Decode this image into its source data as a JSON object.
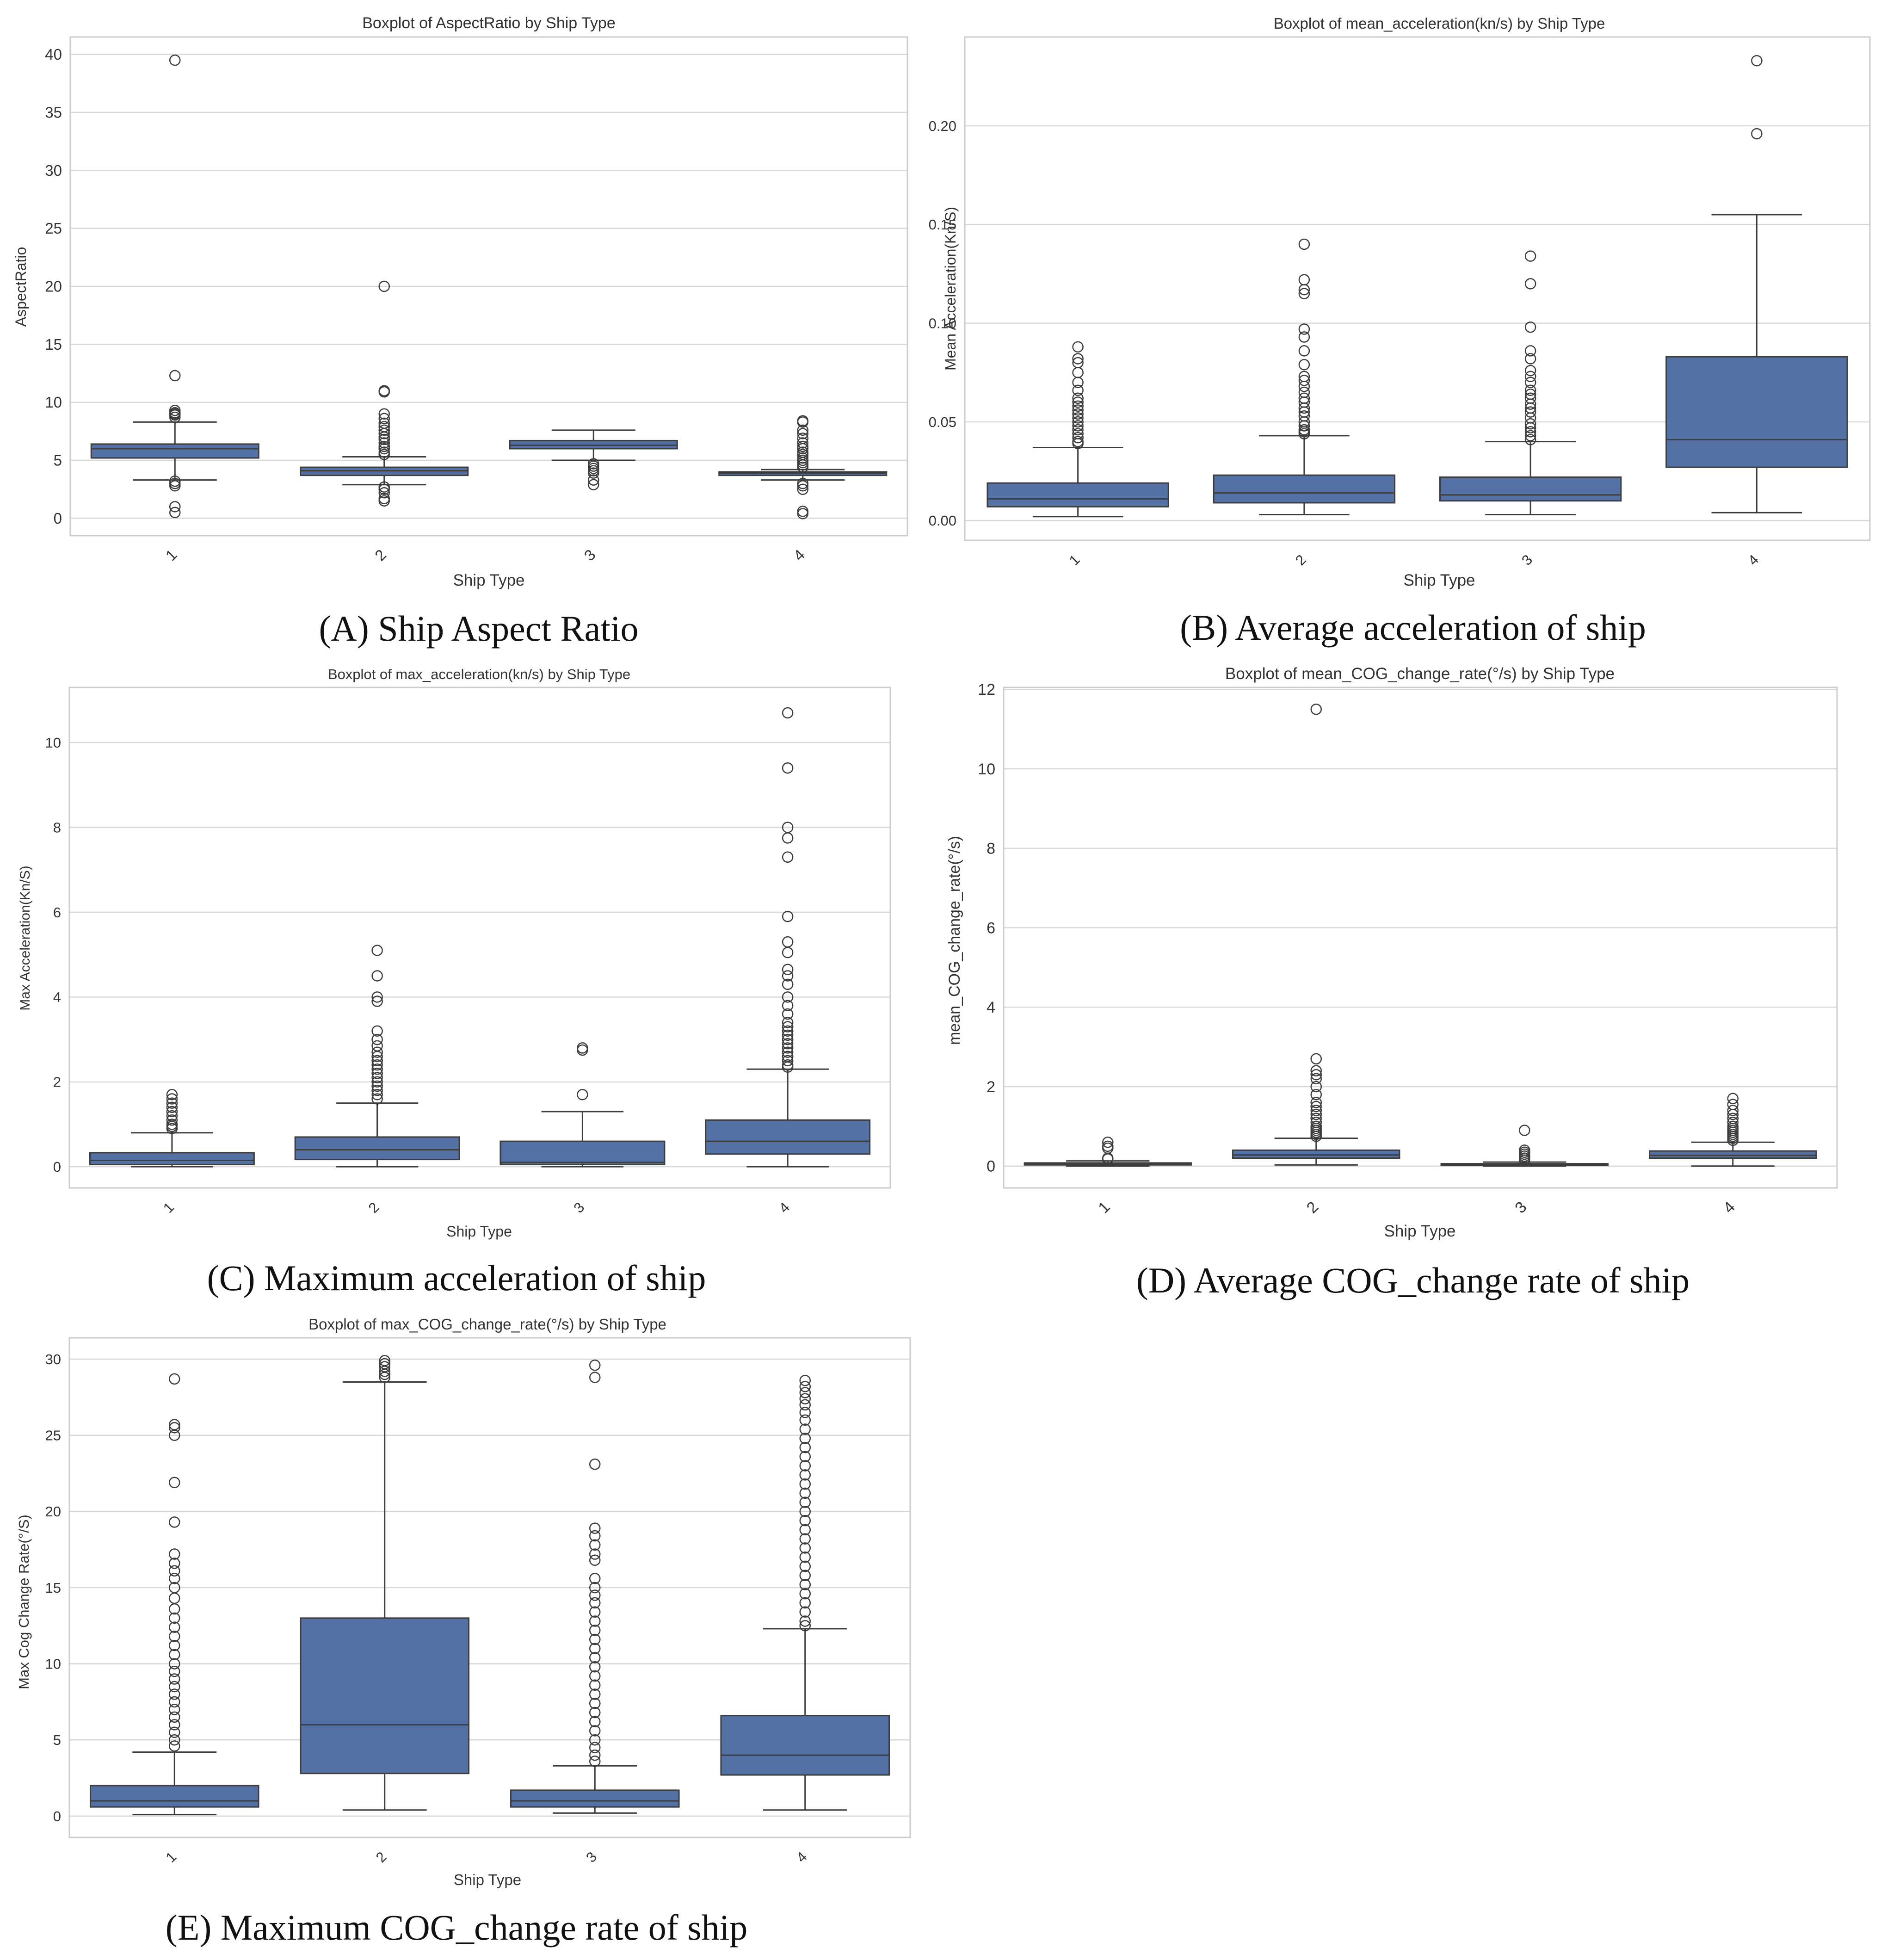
{
  "chart_data": [
    {
      "id": "A",
      "type": "boxplot",
      "title": "Boxplot of AspectRatio by Ship Type",
      "xlabel": "Ship Type",
      "ylabel": "AspectRatio",
      "caption": "(A) Ship Aspect Ratio",
      "categories": [
        "1",
        "2",
        "3",
        "4"
      ],
      "ylim": [
        -1.5,
        41.5
      ],
      "yticks": [
        0,
        5,
        10,
        15,
        20,
        25,
        30,
        35,
        40
      ],
      "ytick_labels": [
        "0",
        "5",
        "10",
        "15",
        "20",
        "25",
        "30",
        "35",
        "40"
      ],
      "boxes": [
        {
          "whislo": 3.3,
          "q1": 5.2,
          "med": 6.0,
          "q3": 6.4,
          "whishi": 8.3,
          "fliers": [
            39.5,
            12.3,
            9.3,
            9.1,
            9.0,
            8.9,
            8.7,
            3.2,
            3.0,
            2.8,
            1.0,
            0.5
          ]
        },
        {
          "whislo": 2.9,
          "q1": 3.7,
          "med": 4.1,
          "q3": 4.4,
          "whishi": 5.3,
          "fliers": [
            20.0,
            11.0,
            10.9,
            9.0,
            8.6,
            8.2,
            7.9,
            7.6,
            7.3,
            7.0,
            6.8,
            6.5,
            6.2,
            6.0,
            5.7,
            5.5,
            2.7,
            2.5,
            2.2,
            1.7,
            1.5
          ]
        },
        {
          "whislo": 5.0,
          "q1": 6.0,
          "med": 6.3,
          "q3": 6.7,
          "whishi": 7.6,
          "fliers": [
            4.7,
            4.5,
            4.3,
            4.1,
            3.9,
            3.3,
            2.9
          ]
        },
        {
          "whislo": 3.3,
          "q1": 3.7,
          "med": 3.9,
          "q3": 4.0,
          "whishi": 4.2,
          "fliers": [
            8.4,
            8.3,
            7.6,
            7.3,
            6.9,
            6.5,
            6.2,
            6.0,
            5.7,
            5.5,
            5.2,
            5.0,
            4.8,
            4.6,
            4.4,
            3.0,
            2.8,
            2.5,
            0.6,
            0.4
          ]
        }
      ]
    },
    {
      "id": "B",
      "type": "boxplot",
      "title": "Boxplot of mean_acceleration(kn/s) by Ship Type",
      "xlabel": "Ship Type",
      "ylabel": "Mean Acceleration(Kn/S)",
      "caption": "(B) Average acceleration of ship",
      "categories": [
        "1",
        "2",
        "3",
        "4"
      ],
      "ylim": [
        -0.01,
        0.245
      ],
      "yticks": [
        0,
        0.05,
        0.1,
        0.15,
        0.2
      ],
      "ytick_labels": [
        "0.00",
        "0.05",
        "0.10",
        "0.15",
        "0.20"
      ],
      "boxes": [
        {
          "whislo": 0.002,
          "q1": 0.007,
          "med": 0.011,
          "q3": 0.019,
          "whishi": 0.037,
          "fliers": [
            0.088,
            0.082,
            0.08,
            0.075,
            0.07,
            0.066,
            0.062,
            0.06,
            0.058,
            0.056,
            0.054,
            0.052,
            0.05,
            0.048,
            0.046,
            0.044,
            0.042,
            0.04,
            0.039
          ]
        },
        {
          "whislo": 0.003,
          "q1": 0.009,
          "med": 0.014,
          "q3": 0.023,
          "whishi": 0.043,
          "fliers": [
            0.14,
            0.122,
            0.117,
            0.115,
            0.097,
            0.093,
            0.086,
            0.079,
            0.073,
            0.071,
            0.068,
            0.065,
            0.062,
            0.06,
            0.057,
            0.055,
            0.053,
            0.05,
            0.048,
            0.046,
            0.045,
            0.044
          ]
        },
        {
          "whislo": 0.003,
          "q1": 0.01,
          "med": 0.013,
          "q3": 0.022,
          "whishi": 0.04,
          "fliers": [
            0.134,
            0.12,
            0.098,
            0.086,
            0.082,
            0.076,
            0.073,
            0.07,
            0.066,
            0.064,
            0.062,
            0.059,
            0.057,
            0.055,
            0.052,
            0.049,
            0.047,
            0.045,
            0.043,
            0.041
          ]
        },
        {
          "whislo": 0.004,
          "q1": 0.027,
          "med": 0.041,
          "q3": 0.083,
          "whishi": 0.155,
          "fliers": [
            0.233,
            0.196
          ]
        }
      ]
    },
    {
      "id": "C",
      "type": "boxplot",
      "title": "Boxplot of max_acceleration(kn/s) by Ship Type",
      "xlabel": "Ship Type",
      "ylabel": "Max Acceleration(Kn/S)",
      "caption": "(C) Maximum acceleration of ship",
      "categories": [
        "1",
        "2",
        "3",
        "4"
      ],
      "ylim": [
        -0.5,
        11.3
      ],
      "yticks": [
        0,
        2,
        4,
        6,
        8,
        10
      ],
      "ytick_labels": [
        "0",
        "2",
        "4",
        "6",
        "8",
        "10"
      ],
      "boxes": [
        {
          "whislo": 0.0,
          "q1": 0.05,
          "med": 0.15,
          "q3": 0.33,
          "whishi": 0.8,
          "fliers": [
            1.7,
            1.6,
            1.5,
            1.4,
            1.3,
            1.2,
            1.1,
            1.0,
            0.95,
            0.9
          ]
        },
        {
          "whislo": 0.0,
          "q1": 0.17,
          "med": 0.4,
          "q3": 0.7,
          "whishi": 1.5,
          "fliers": [
            5.1,
            4.5,
            4.0,
            3.9,
            3.2,
            3.0,
            2.85,
            2.7,
            2.6,
            2.5,
            2.4,
            2.3,
            2.2,
            2.1,
            2.0,
            1.9,
            1.8,
            1.7,
            1.6
          ]
        },
        {
          "whislo": 0.0,
          "q1": 0.05,
          "med": 0.1,
          "q3": 0.6,
          "whishi": 1.3,
          "fliers": [
            2.8,
            2.75,
            1.7
          ]
        },
        {
          "whislo": 0.0,
          "q1": 0.3,
          "med": 0.6,
          "q3": 1.1,
          "whishi": 2.3,
          "fliers": [
            10.7,
            9.4,
            8.0,
            7.75,
            7.3,
            5.9,
            5.3,
            5.05,
            4.65,
            4.5,
            4.3,
            4.0,
            3.8,
            3.6,
            3.4,
            3.3,
            3.2,
            3.1,
            3.0,
            2.9,
            2.8,
            2.7,
            2.6,
            2.5,
            2.4,
            2.35
          ]
        }
      ]
    },
    {
      "id": "D",
      "type": "boxplot",
      "title": "Boxplot of mean_COG_change_rate(°/s) by Ship Type",
      "xlabel": "Ship Type",
      "ylabel": "mean_COG_change_rate(°/s)",
      "caption": "(D) Average COG_change rate of ship",
      "categories": [
        "1",
        "2",
        "3",
        "4"
      ],
      "ylim": [
        -0.55,
        12.05
      ],
      "yticks": [
        0,
        2,
        4,
        6,
        8,
        10,
        12
      ],
      "ytick_labels": [
        "0",
        "2",
        "4",
        "6",
        "8",
        "10",
        "12"
      ],
      "boxes": [
        {
          "whislo": 0.0,
          "q1": 0.03,
          "med": 0.05,
          "q3": 0.08,
          "whishi": 0.13,
          "fliers": [
            0.6,
            0.5,
            0.45,
            0.2,
            0.18
          ]
        },
        {
          "whislo": 0.03,
          "q1": 0.2,
          "med": 0.28,
          "q3": 0.4,
          "whishi": 0.7,
          "fliers": [
            11.5,
            2.7,
            2.4,
            2.3,
            2.2,
            2.0,
            1.8,
            1.6,
            1.5,
            1.4,
            1.3,
            1.2,
            1.1,
            1.0,
            0.95,
            0.9,
            0.85,
            0.8,
            0.75
          ]
        },
        {
          "whislo": 0.0,
          "q1": 0.02,
          "med": 0.04,
          "q3": 0.06,
          "whishi": 0.1,
          "fliers": [
            0.9,
            0.4,
            0.35,
            0.3,
            0.25,
            0.2,
            0.15
          ]
        },
        {
          "whislo": 0.0,
          "q1": 0.2,
          "med": 0.27,
          "q3": 0.38,
          "whishi": 0.6,
          "fliers": [
            1.7,
            1.55,
            1.4,
            1.3,
            1.2,
            1.1,
            1.0,
            0.95,
            0.9,
            0.85,
            0.8,
            0.75,
            0.7,
            0.65
          ]
        }
      ]
    },
    {
      "id": "E",
      "type": "boxplot",
      "title": "Boxplot of max_COG_change_rate(°/s) by Ship Type",
      "xlabel": "Ship Type",
      "ylabel": "Max Cog Change Rate(°/S)",
      "caption": "(E) Maximum COG_change rate of ship",
      "categories": [
        "1",
        "2",
        "3",
        "4"
      ],
      "ylim": [
        -1.4,
        31.4
      ],
      "yticks": [
        0,
        5,
        10,
        15,
        20,
        25,
        30
      ],
      "ytick_labels": [
        "0",
        "5",
        "10",
        "15",
        "20",
        "25",
        "30"
      ],
      "boxes": [
        {
          "whislo": 0.1,
          "q1": 0.6,
          "med": 1.0,
          "q3": 2.0,
          "whishi": 4.2,
          "fliers": [
            28.7,
            25.7,
            25.5,
            25.0,
            21.9,
            19.3,
            17.2,
            16.6,
            16.1,
            15.6,
            15.0,
            14.3,
            13.6,
            13.0,
            12.4,
            11.8,
            11.2,
            10.6,
            10.0,
            9.5,
            9.0,
            8.5,
            8.0,
            7.5,
            7.0,
            6.5,
            6.0,
            5.5,
            5.0,
            4.6
          ]
        },
        {
          "whislo": 0.4,
          "q1": 2.8,
          "med": 6.0,
          "q3": 13.0,
          "whishi": 28.5,
          "fliers": [
            29.9,
            29.7,
            29.5,
            29.2,
            29.0,
            28.8
          ]
        },
        {
          "whislo": 0.2,
          "q1": 0.6,
          "med": 1.0,
          "q3": 1.7,
          "whishi": 3.3,
          "fliers": [
            29.6,
            28.8,
            23.1,
            18.9,
            18.4,
            17.8,
            17.2,
            16.8,
            15.6,
            15.0,
            14.5,
            14.0,
            13.4,
            12.8,
            12.2,
            11.6,
            11.0,
            10.4,
            9.8,
            9.2,
            8.6,
            8.0,
            7.4,
            6.8,
            6.2,
            5.6,
            5.0,
            4.5,
            4.0,
            3.6
          ]
        },
        {
          "whislo": 0.4,
          "q1": 2.7,
          "med": 4.0,
          "q3": 6.6,
          "whishi": 12.3,
          "fliers": [
            28.6,
            28.2,
            27.8,
            27.4,
            27.0,
            26.5,
            26.0,
            25.4,
            24.8,
            24.2,
            23.6,
            23.0,
            22.4,
            21.8,
            21.2,
            20.6,
            20.0,
            19.4,
            18.8,
            18.2,
            17.6,
            17.0,
            16.4,
            15.8,
            15.2,
            14.6,
            14.0,
            13.4,
            12.8,
            12.5
          ]
        }
      ]
    }
  ],
  "colors": {
    "box_fill": "#5371a5",
    "line": "#3d3d3d",
    "grid": "#d8d8d8",
    "frame": "#cccccc"
  }
}
